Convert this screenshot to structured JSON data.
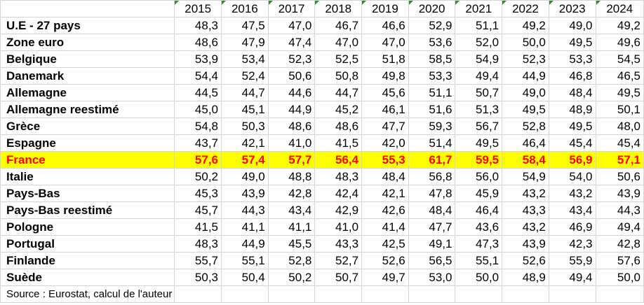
{
  "header": {
    "years": [
      "2015",
      "2016",
      "2017",
      "2018",
      "2019",
      "2020",
      "2021",
      "2022",
      "2023",
      "2024"
    ]
  },
  "rows": [
    {
      "label": "U.E - 27 pays",
      "values": [
        "48,3",
        "47,5",
        "47,0",
        "46,7",
        "46,6",
        "52,9",
        "51,1",
        "49,2",
        "49,0",
        "49,2"
      ]
    },
    {
      "label": "Zone euro",
      "values": [
        "48,6",
        "47,9",
        "47,4",
        "47,0",
        "47,0",
        "53,6",
        "52,0",
        "50,0",
        "49,5",
        "49,6"
      ]
    },
    {
      "label": "Belgique",
      "values": [
        "53,9",
        "53,4",
        "52,3",
        "52,5",
        "51,8",
        "58,5",
        "54,9",
        "52,3",
        "53,3",
        "54,5"
      ]
    },
    {
      "label": "Danemark",
      "values": [
        "54,4",
        "52,4",
        "50,6",
        "50,8",
        "49,8",
        "53,3",
        "49,4",
        "44,9",
        "46,8",
        "46,5"
      ]
    },
    {
      "label": "Allemagne",
      "values": [
        "44,5",
        "44,7",
        "44,6",
        "44,7",
        "45,6",
        "51,1",
        "50,7",
        "49,0",
        "48,4",
        "49,5"
      ]
    },
    {
      "label": "Allemagne reestimé",
      "values": [
        "45,0",
        "45,1",
        "44,9",
        "45,2",
        "46,1",
        "51,6",
        "51,3",
        "49,5",
        "48,9",
        "50,1"
      ]
    },
    {
      "label": "Grèce",
      "values": [
        "54,8",
        "50,3",
        "48,6",
        "48,6",
        "47,7",
        "59,3",
        "56,7",
        "52,8",
        "49,5",
        "48,0"
      ]
    },
    {
      "label": "Espagne",
      "values": [
        "43,7",
        "42,1",
        "41,0",
        "41,5",
        "42,0",
        "51,4",
        "49,5",
        "46,4",
        "45,4",
        "45,4"
      ]
    },
    {
      "label": "France",
      "values": [
        "57,6",
        "57,4",
        "57,7",
        "56,4",
        "55,3",
        "61,7",
        "59,5",
        "58,4",
        "56,9",
        "57,1"
      ],
      "highlight": true
    },
    {
      "label": "Italie",
      "values": [
        "50,2",
        "49,0",
        "48,8",
        "48,3",
        "48,4",
        "56,8",
        "56,0",
        "54,9",
        "54,0",
        "50,6"
      ]
    },
    {
      "label": "Pays-Bas",
      "values": [
        "45,3",
        "43,9",
        "42,8",
        "42,4",
        "42,1",
        "47,8",
        "45,9",
        "43,2",
        "43,2",
        "43,9"
      ]
    },
    {
      "label": "Pays-Bas reestimé",
      "values": [
        "45,7",
        "44,3",
        "43,4",
        "42,9",
        "42,6",
        "48,4",
        "46,4",
        "43,3",
        "43,4",
        "44,3"
      ]
    },
    {
      "label": "Pologne",
      "values": [
        "41,5",
        "41,1",
        "41,1",
        "41,0",
        "41,4",
        "47,7",
        "43,6",
        "43,2",
        "46,9",
        "49,4"
      ]
    },
    {
      "label": "Portugal",
      "values": [
        "48,3",
        "44,9",
        "45,5",
        "43,3",
        "42,5",
        "49,1",
        "47,3",
        "43,9",
        "42,3",
        "42,8"
      ]
    },
    {
      "label": "Finlande",
      "values": [
        "55,7",
        "55,1",
        "52,8",
        "52,7",
        "52,6",
        "56,5",
        "55,1",
        "52,6",
        "55,9",
        "57,6"
      ]
    },
    {
      "label": "Suède",
      "values": [
        "50,3",
        "50,4",
        "50,2",
        "50,7",
        "49,7",
        "53,0",
        "50,0",
        "48,9",
        "49,4",
        "50,0"
      ]
    }
  ],
  "source": "Source : Eurostat, calcul de l'auteur",
  "colors": {
    "highlight_bg": "#ffff00",
    "highlight_text": "#ff0000",
    "grid": "#d4d4d4"
  }
}
